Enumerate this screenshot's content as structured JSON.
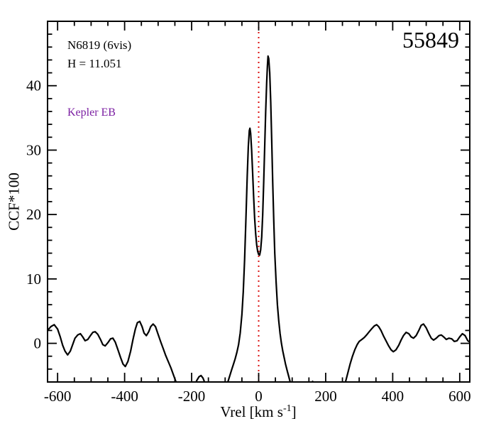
{
  "annotations": {
    "target_label": "N6819 (6vis)",
    "hmag_label": "H = 11.051",
    "class_label": "Kepler EB",
    "mjd_label": "55849"
  },
  "colors": {
    "curve": "#000000",
    "frame": "#000000",
    "marker_line": "#dd1111",
    "class_label": "#7b1fa2",
    "background": "#ffffff"
  },
  "chart_data": {
    "type": "line",
    "title": "",
    "xlabel_prefix": "Vrel [km s",
    "xlabel_sup": "-1",
    "xlabel_suffix": "]",
    "ylabel": "CCF*100",
    "xlim": [
      -630,
      630
    ],
    "ylim": [
      -6,
      50
    ],
    "x_major_ticks": [
      -600,
      -400,
      -200,
      0,
      200,
      400,
      600
    ],
    "x_minor_step": 50,
    "y_major_ticks": [
      0,
      10,
      20,
      30,
      40
    ],
    "y_minor_step": 2,
    "grid": false,
    "legend": false,
    "marker_x": 0,
    "series": [
      {
        "name": "CCF",
        "points": [
          [
            -630,
            2.0
          ],
          [
            -620,
            2.6
          ],
          [
            -610,
            2.9
          ],
          [
            -600,
            2.2
          ],
          [
            -592,
            1.0
          ],
          [
            -585,
            -0.3
          ],
          [
            -578,
            -1.2
          ],
          [
            -570,
            -1.8
          ],
          [
            -562,
            -1.2
          ],
          [
            -555,
            -0.2
          ],
          [
            -548,
            0.8
          ],
          [
            -540,
            1.3
          ],
          [
            -532,
            1.5
          ],
          [
            -525,
            1.0
          ],
          [
            -518,
            0.4
          ],
          [
            -510,
            0.6
          ],
          [
            -502,
            1.2
          ],
          [
            -495,
            1.7
          ],
          [
            -488,
            1.8
          ],
          [
            -480,
            1.4
          ],
          [
            -472,
            0.6
          ],
          [
            -465,
            -0.2
          ],
          [
            -458,
            -0.4
          ],
          [
            -450,
            0.1
          ],
          [
            -442,
            0.7
          ],
          [
            -435,
            0.8
          ],
          [
            -428,
            0.2
          ],
          [
            -420,
            -1.0
          ],
          [
            -412,
            -2.2
          ],
          [
            -405,
            -3.2
          ],
          [
            -398,
            -3.6
          ],
          [
            -390,
            -2.8
          ],
          [
            -382,
            -1.2
          ],
          [
            -375,
            0.6
          ],
          [
            -368,
            2.2
          ],
          [
            -362,
            3.2
          ],
          [
            -355,
            3.4
          ],
          [
            -348,
            2.6
          ],
          [
            -342,
            1.6
          ],
          [
            -335,
            1.2
          ],
          [
            -328,
            1.8
          ],
          [
            -322,
            2.6
          ],
          [
            -315,
            3.0
          ],
          [
            -308,
            2.6
          ],
          [
            -300,
            1.4
          ],
          [
            -292,
            0.2
          ],
          [
            -285,
            -0.8
          ],
          [
            -278,
            -1.8
          ],
          [
            -270,
            -2.8
          ],
          [
            -262,
            -3.8
          ],
          [
            -255,
            -4.8
          ],
          [
            -248,
            -5.8
          ],
          [
            -240,
            -7.0
          ],
          [
            -230,
            -8.2
          ],
          [
            -220,
            -8.8
          ],
          [
            -210,
            -8.6
          ],
          [
            -200,
            -7.8
          ],
          [
            -192,
            -6.8
          ],
          [
            -185,
            -5.8
          ],
          [
            -178,
            -5.2
          ],
          [
            -172,
            -5.0
          ],
          [
            -166,
            -5.4
          ],
          [
            -160,
            -6.2
          ],
          [
            -152,
            -7.4
          ],
          [
            -144,
            -8.4
          ],
          [
            -135,
            -9.0
          ],
          [
            -125,
            -9.2
          ],
          [
            -115,
            -8.8
          ],
          [
            -105,
            -8.0
          ],
          [
            -98,
            -7.0
          ],
          [
            -92,
            -6.0
          ],
          [
            -86,
            -5.0
          ],
          [
            -80,
            -4.0
          ],
          [
            -75,
            -3.2
          ],
          [
            -70,
            -2.4
          ],
          [
            -65,
            -1.4
          ],
          [
            -60,
            -0.2
          ],
          [
            -55,
            1.6
          ],
          [
            -50,
            4.5
          ],
          [
            -46,
            8.0
          ],
          [
            -42,
            13.0
          ],
          [
            -38,
            19.5
          ],
          [
            -34,
            26.0
          ],
          [
            -31,
            30.5
          ],
          [
            -28,
            33.0
          ],
          [
            -26,
            33.4
          ],
          [
            -24,
            32.6
          ],
          [
            -21,
            30.0
          ],
          [
            -18,
            26.5
          ],
          [
            -15,
            22.8
          ],
          [
            -12,
            19.5
          ],
          [
            -9,
            17.0
          ],
          [
            -6,
            15.3
          ],
          [
            -3,
            14.3
          ],
          [
            0,
            13.8
          ],
          [
            3,
            13.7
          ],
          [
            6,
            14.5
          ],
          [
            9,
            16.5
          ],
          [
            12,
            20.0
          ],
          [
            15,
            25.0
          ],
          [
            18,
            30.5
          ],
          [
            21,
            36.0
          ],
          [
            24,
            40.5
          ],
          [
            26,
            43.0
          ],
          [
            28,
            44.6
          ],
          [
            30,
            44.2
          ],
          [
            33,
            42.0
          ],
          [
            36,
            37.5
          ],
          [
            39,
            31.5
          ],
          [
            42,
            25.0
          ],
          [
            45,
            19.0
          ],
          [
            48,
            14.0
          ],
          [
            52,
            9.5
          ],
          [
            56,
            6.0
          ],
          [
            60,
            3.5
          ],
          [
            64,
            1.5
          ],
          [
            68,
            0.0
          ],
          [
            72,
            -1.2
          ],
          [
            76,
            -2.2
          ],
          [
            80,
            -3.2
          ],
          [
            85,
            -4.2
          ],
          [
            90,
            -5.2
          ],
          [
            95,
            -6.2
          ],
          [
            100,
            -7.2
          ],
          [
            108,
            -8.4
          ],
          [
            116,
            -9.0
          ],
          [
            125,
            -9.2
          ],
          [
            135,
            -9.0
          ],
          [
            143,
            -8.2
          ],
          [
            150,
            -7.2
          ],
          [
            156,
            -6.3
          ],
          [
            161,
            -5.9
          ],
          [
            166,
            -6.4
          ],
          [
            172,
            -7.4
          ],
          [
            180,
            -8.6
          ],
          [
            190,
            -9.2
          ],
          [
            200,
            -9.4
          ],
          [
            210,
            -9.4
          ],
          [
            220,
            -9.2
          ],
          [
            230,
            -9.0
          ],
          [
            240,
            -8.6
          ],
          [
            248,
            -7.8
          ],
          [
            255,
            -6.8
          ],
          [
            261,
            -5.6
          ],
          [
            267,
            -4.4
          ],
          [
            273,
            -3.2
          ],
          [
            280,
            -2.0
          ],
          [
            287,
            -1.0
          ],
          [
            294,
            -0.2
          ],
          [
            300,
            0.3
          ],
          [
            308,
            0.6
          ],
          [
            315,
            0.9
          ],
          [
            322,
            1.3
          ],
          [
            330,
            1.8
          ],
          [
            338,
            2.3
          ],
          [
            345,
            2.7
          ],
          [
            352,
            2.9
          ],
          [
            358,
            2.6
          ],
          [
            365,
            2.0
          ],
          [
            372,
            1.2
          ],
          [
            380,
            0.4
          ],
          [
            388,
            -0.4
          ],
          [
            395,
            -1.0
          ],
          [
            402,
            -1.3
          ],
          [
            410,
            -1.0
          ],
          [
            418,
            -0.3
          ],
          [
            425,
            0.5
          ],
          [
            432,
            1.2
          ],
          [
            440,
            1.7
          ],
          [
            448,
            1.5
          ],
          [
            455,
            1.0
          ],
          [
            462,
            0.8
          ],
          [
            470,
            1.2
          ],
          [
            478,
            2.0
          ],
          [
            485,
            2.8
          ],
          [
            492,
            3.0
          ],
          [
            500,
            2.4
          ],
          [
            508,
            1.5
          ],
          [
            515,
            0.8
          ],
          [
            522,
            0.5
          ],
          [
            530,
            0.8
          ],
          [
            538,
            1.2
          ],
          [
            545,
            1.3
          ],
          [
            552,
            1.0
          ],
          [
            560,
            0.6
          ],
          [
            568,
            0.8
          ],
          [
            576,
            0.7
          ],
          [
            584,
            0.3
          ],
          [
            592,
            0.4
          ],
          [
            600,
            1.0
          ],
          [
            608,
            1.5
          ],
          [
            616,
            1.2
          ],
          [
            624,
            0.4
          ],
          [
            630,
            0.2
          ]
        ]
      }
    ]
  }
}
